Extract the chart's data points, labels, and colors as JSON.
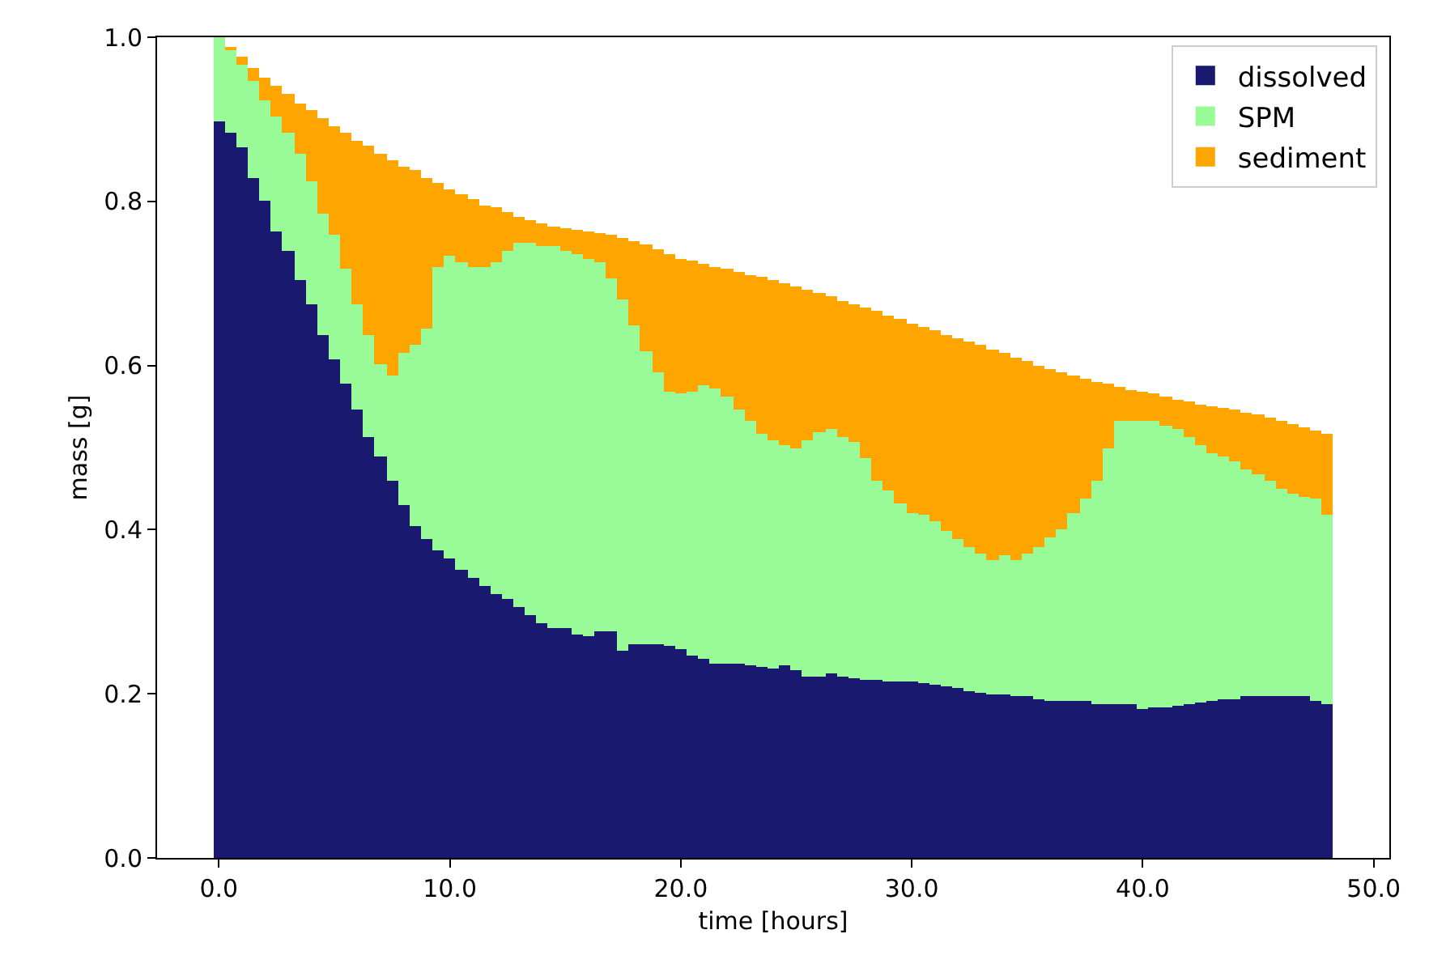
{
  "chart_data": {
    "type": "bar",
    "stacked": true,
    "xlabel": "time [hours]",
    "ylabel": "mass [g]",
    "x": [
      0,
      0.5,
      1,
      1.5,
      2,
      2.5,
      3,
      3.5,
      4,
      4.5,
      5,
      5.5,
      6,
      6.5,
      7,
      7.5,
      8,
      8.5,
      9,
      9.5,
      10,
      10.5,
      11,
      11.5,
      12,
      12.5,
      13,
      13.5,
      14,
      14.5,
      15,
      15.5,
      16,
      16.5,
      17,
      17.5,
      18,
      18.5,
      19,
      19.5,
      20,
      20.5,
      21,
      21.5,
      22,
      22.5,
      23,
      23.5,
      24,
      24.5,
      25,
      25.5,
      26,
      26.5,
      27,
      27.5,
      28,
      28.5,
      29,
      29.5,
      30,
      30.5,
      31,
      31.5,
      32,
      32.5,
      33,
      33.5,
      34,
      34.5,
      35,
      35.5,
      36,
      36.5,
      37,
      37.5,
      38,
      38.5,
      39,
      39.5,
      40,
      40.5,
      41,
      41.5,
      42,
      42.5,
      43,
      43.5,
      44,
      44.5,
      45,
      45.5,
      46,
      46.5,
      47,
      47.5,
      48
    ],
    "series": [
      {
        "name": "dissolved",
        "color": "#191970",
        "values": [
          0.897,
          0.884,
          0.865,
          0.828,
          0.8,
          0.763,
          0.74,
          0.704,
          0.675,
          0.637,
          0.607,
          0.578,
          0.546,
          0.513,
          0.489,
          0.46,
          0.43,
          0.404,
          0.389,
          0.375,
          0.365,
          0.351,
          0.341,
          0.331,
          0.321,
          0.315,
          0.306,
          0.296,
          0.286,
          0.28,
          0.28,
          0.272,
          0.27,
          0.276,
          0.276,
          0.253,
          0.26,
          0.26,
          0.26,
          0.258,
          0.255,
          0.247,
          0.243,
          0.237,
          0.237,
          0.237,
          0.234,
          0.232,
          0.231,
          0.234,
          0.228,
          0.221,
          0.221,
          0.224,
          0.221,
          0.219,
          0.217,
          0.216,
          0.215,
          0.215,
          0.215,
          0.213,
          0.211,
          0.21,
          0.208,
          0.204,
          0.201,
          0.2,
          0.199,
          0.197,
          0.197,
          0.194,
          0.191,
          0.191,
          0.191,
          0.191,
          0.187,
          0.187,
          0.187,
          0.187,
          0.181,
          0.183,
          0.184,
          0.186,
          0.187,
          0.189,
          0.191,
          0.194,
          0.194,
          0.197,
          0.197,
          0.197,
          0.197,
          0.197,
          0.197,
          0.191,
          0.187
        ]
      },
      {
        "name": "SPM",
        "color": "#98fb98",
        "values": [
          0.103,
          0.102,
          0.101,
          0.119,
          0.124,
          0.141,
          0.144,
          0.154,
          0.15,
          0.149,
          0.152,
          0.139,
          0.128,
          0.125,
          0.113,
          0.128,
          0.185,
          0.221,
          0.255,
          0.345,
          0.368,
          0.375,
          0.379,
          0.389,
          0.405,
          0.425,
          0.444,
          0.454,
          0.46,
          0.465,
          0.46,
          0.463,
          0.46,
          0.45,
          0.431,
          0.427,
          0.388,
          0.358,
          0.332,
          0.311,
          0.311,
          0.322,
          0.332,
          0.335,
          0.325,
          0.309,
          0.299,
          0.284,
          0.278,
          0.269,
          0.272,
          0.288,
          0.298,
          0.299,
          0.292,
          0.288,
          0.27,
          0.244,
          0.232,
          0.216,
          0.206,
          0.205,
          0.2,
          0.188,
          0.18,
          0.174,
          0.17,
          0.162,
          0.169,
          0.165,
          0.174,
          0.184,
          0.2,
          0.21,
          0.23,
          0.246,
          0.273,
          0.313,
          0.346,
          0.346,
          0.352,
          0.35,
          0.342,
          0.337,
          0.326,
          0.314,
          0.302,
          0.296,
          0.289,
          0.276,
          0.27,
          0.263,
          0.253,
          0.247,
          0.243,
          0.246,
          0.231
        ]
      },
      {
        "name": "sediment",
        "color": "#ffa500",
        "values": [
          0,
          0.001,
          0.01,
          0.016,
          0.026,
          0.036,
          0.046,
          0.062,
          0.086,
          0.115,
          0.132,
          0.167,
          0.2,
          0.23,
          0.256,
          0.263,
          0.228,
          0.213,
          0.184,
          0.102,
          0.082,
          0.083,
          0.082,
          0.075,
          0.066,
          0.047,
          0.032,
          0.028,
          0.027,
          0.025,
          0.028,
          0.031,
          0.034,
          0.036,
          0.052,
          0.075,
          0.103,
          0.129,
          0.149,
          0.166,
          0.164,
          0.158,
          0.149,
          0.148,
          0.155,
          0.168,
          0.178,
          0.192,
          0.195,
          0.197,
          0.196,
          0.183,
          0.169,
          0.161,
          0.166,
          0.168,
          0.184,
          0.206,
          0.214,
          0.225,
          0.23,
          0.229,
          0.232,
          0.24,
          0.246,
          0.251,
          0.254,
          0.258,
          0.247,
          0.248,
          0.234,
          0.222,
          0.204,
          0.19,
          0.166,
          0.146,
          0.119,
          0.077,
          0.041,
          0.038,
          0.036,
          0.033,
          0.037,
          0.036,
          0.043,
          0.05,
          0.057,
          0.058,
          0.063,
          0.07,
          0.073,
          0.077,
          0.083,
          0.085,
          0.085,
          0.084,
          0.099
        ]
      }
    ],
    "xlim": [
      -2.675,
      50.675
    ],
    "xticks": [
      {
        "value": 0,
        "label": "0.0"
      },
      {
        "value": 10,
        "label": "10.0"
      },
      {
        "value": 20,
        "label": "20.0"
      },
      {
        "value": 30,
        "label": "30.0"
      },
      {
        "value": 40,
        "label": "40.0"
      },
      {
        "value": 50,
        "label": "50.0"
      }
    ],
    "ylim": [
      0,
      1
    ],
    "yticks": [
      {
        "value": 0,
        "label": "0.0"
      },
      {
        "value": 0.2,
        "label": "0.2"
      },
      {
        "value": 0.4,
        "label": "0.4"
      },
      {
        "value": 0.6,
        "label": "0.6"
      },
      {
        "value": 0.8,
        "label": "0.8"
      },
      {
        "value": 1,
        "label": "1.0"
      }
    ],
    "legend": "top right"
  }
}
